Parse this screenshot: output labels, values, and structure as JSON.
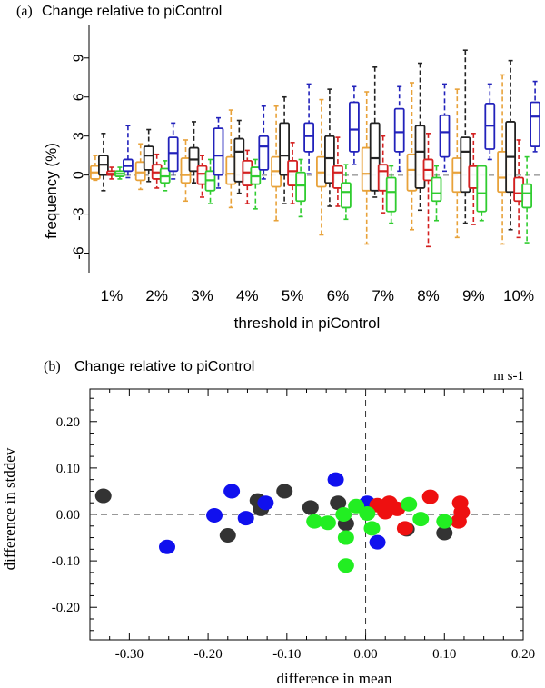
{
  "chart_data": [
    {
      "type": "box",
      "panel_label": "(a)",
      "title": "Change relative to piControl",
      "xlabel": "threshold in piControl",
      "ylabel": "frequency (%)",
      "ylim": [
        -7.5,
        11.5
      ],
      "yticks": [
        "-6",
        "-3",
        "0",
        "3",
        "6",
        "9"
      ],
      "ytick_values": [
        -6,
        -3,
        0,
        3,
        6,
        9
      ],
      "reference_line": 0,
      "categories": [
        "1%",
        "2%",
        "3%",
        "4%",
        "5%",
        "6%",
        "7%",
        "8%",
        "9%",
        "10%"
      ],
      "series_colors": [
        "#e8a23a",
        "#222222",
        "#d42020",
        "#30cc30",
        "#2222bb"
      ],
      "boxes": [
        [
          {
            "w_lo": -0.4,
            "q1": -0.3,
            "med": 0.2,
            "q3": 0.7,
            "w_hi": 1.5
          },
          {
            "w_lo": -1.2,
            "q1": 0.0,
            "med": 0.8,
            "q3": 1.5,
            "w_hi": 3.2
          },
          {
            "w_lo": -0.3,
            "q1": 0.0,
            "med": 0.1,
            "q3": 0.3,
            "w_hi": 0.6
          },
          {
            "w_lo": -0.3,
            "q1": -0.1,
            "med": 0.1,
            "q3": 0.3,
            "w_hi": 0.6
          },
          {
            "w_lo": -0.2,
            "q1": 0.3,
            "med": 0.7,
            "q3": 1.2,
            "w_hi": 3.8
          }
        ],
        [
          {
            "w_lo": -1.1,
            "q1": -0.4,
            "med": 0.2,
            "q3": 1.0,
            "w_hi": 2.4
          },
          {
            "w_lo": -0.5,
            "q1": 0.4,
            "med": 1.5,
            "q3": 2.2,
            "w_hi": 3.5
          },
          {
            "w_lo": -1.0,
            "q1": -0.3,
            "med": 0.2,
            "q3": 0.8,
            "w_hi": 1.6
          },
          {
            "w_lo": -1.2,
            "q1": -0.6,
            "med": -0.1,
            "q3": 0.5,
            "w_hi": 1.1
          },
          {
            "w_lo": -0.3,
            "q1": 0.3,
            "med": 1.7,
            "q3": 2.9,
            "w_hi": 4.0
          }
        ],
        [
          {
            "w_lo": -2.0,
            "q1": -0.6,
            "med": 0.0,
            "q3": 1.3,
            "w_hi": 2.7
          },
          {
            "w_lo": -0.6,
            "q1": 0.3,
            "med": 1.2,
            "q3": 2.1,
            "w_hi": 4.1
          },
          {
            "w_lo": -1.7,
            "q1": -0.7,
            "med": 0.1,
            "q3": 0.7,
            "w_hi": 1.5
          },
          {
            "w_lo": -2.2,
            "q1": -1.2,
            "med": -0.4,
            "q3": 0.3,
            "w_hi": 1.2
          },
          {
            "w_lo": -1.0,
            "q1": 0.0,
            "med": 1.5,
            "q3": 3.6,
            "w_hi": 4.4
          }
        ],
        [
          {
            "w_lo": -2.5,
            "q1": -0.7,
            "med": 0.1,
            "q3": 1.4,
            "w_hi": 5.0
          },
          {
            "w_lo": -1.4,
            "q1": -0.5,
            "med": 1.8,
            "q3": 2.8,
            "w_hi": 4.2
          },
          {
            "w_lo": -2.2,
            "q1": -0.8,
            "med": 0.2,
            "q3": 1.1,
            "w_hi": 1.9
          },
          {
            "w_lo": -2.6,
            "q1": -0.7,
            "med": -0.1,
            "q3": 0.6,
            "w_hi": 1.2
          },
          {
            "w_lo": -0.3,
            "q1": 0.4,
            "med": 2.2,
            "q3": 3.0,
            "w_hi": 5.3
          }
        ],
        [
          {
            "w_lo": -3.5,
            "q1": -0.9,
            "med": 0.3,
            "q3": 1.4,
            "w_hi": 5.3
          },
          {
            "w_lo": -2.2,
            "q1": 0.0,
            "med": 1.5,
            "q3": 4.0,
            "w_hi": 6.0
          },
          {
            "w_lo": -2.2,
            "q1": -0.8,
            "med": 0.3,
            "q3": 1.1,
            "w_hi": 2.5
          },
          {
            "w_lo": -3.2,
            "q1": -2.0,
            "med": -0.8,
            "q3": 0.2,
            "w_hi": 1.2
          },
          {
            "w_lo": 0.1,
            "q1": 1.8,
            "med": 3.0,
            "q3": 4.0,
            "w_hi": 7.0
          }
        ],
        [
          {
            "w_lo": -4.6,
            "q1": -0.9,
            "med": 0.2,
            "q3": 1.4,
            "w_hi": 5.8
          },
          {
            "w_lo": -2.4,
            "q1": -0.6,
            "med": 1.3,
            "q3": 3.0,
            "w_hi": 6.6
          },
          {
            "w_lo": -2.4,
            "q1": -1.0,
            "med": 0.2,
            "q3": 0.7,
            "w_hi": 2.9
          },
          {
            "w_lo": -3.4,
            "q1": -2.5,
            "med": -1.3,
            "q3": -0.6,
            "w_hi": 0.8
          },
          {
            "w_lo": 0.8,
            "q1": 1.8,
            "med": 3.5,
            "q3": 5.6,
            "w_hi": 6.8
          }
        ],
        [
          {
            "w_lo": -5.3,
            "q1": -1.2,
            "med": 0.1,
            "q3": 2.1,
            "w_hi": 6.4
          },
          {
            "w_lo": -1.7,
            "q1": -1.2,
            "med": 1.3,
            "q3": 4.0,
            "w_hi": 8.3
          },
          {
            "w_lo": -2.9,
            "q1": -1.2,
            "med": 0.3,
            "q3": 0.8,
            "w_hi": 3.0
          },
          {
            "w_lo": -3.7,
            "q1": -2.8,
            "med": -1.3,
            "q3": -0.2,
            "w_hi": 0.7
          },
          {
            "w_lo": 0.3,
            "q1": 1.8,
            "med": 3.3,
            "q3": 5.1,
            "w_hi": 6.8
          }
        ],
        [
          {
            "w_lo": -4.2,
            "q1": -1.2,
            "med": 0.4,
            "q3": 1.6,
            "w_hi": 7.1
          },
          {
            "w_lo": -2.7,
            "q1": -1.0,
            "med": 1.8,
            "q3": 3.8,
            "w_hi": 8.6
          },
          {
            "w_lo": -5.5,
            "q1": -0.4,
            "med": 0.4,
            "q3": 1.2,
            "w_hi": 3.2
          },
          {
            "w_lo": -3.5,
            "q1": -2.0,
            "med": -1.4,
            "q3": -0.2,
            "w_hi": 0.7
          },
          {
            "w_lo": 0.3,
            "q1": 1.4,
            "med": 3.3,
            "q3": 4.6,
            "w_hi": 7.0
          }
        ],
        [
          {
            "w_lo": -4.8,
            "q1": -1.3,
            "med": 0.2,
            "q3": 1.3,
            "w_hi": 6.6
          },
          {
            "w_lo": -3.7,
            "q1": -1.3,
            "med": 1.8,
            "q3": 2.9,
            "w_hi": 9.6
          },
          {
            "w_lo": -3.8,
            "q1": -1.0,
            "med": 0.7,
            "q3": 0.7,
            "w_hi": 3.2
          },
          {
            "w_lo": -3.5,
            "q1": -2.8,
            "med": -1.4,
            "q3": 0.7,
            "w_hi": 0.7
          },
          {
            "w_lo": 1.2,
            "q1": 2.0,
            "med": 3.8,
            "q3": 5.5,
            "w_hi": 7.0
          }
        ],
        [
          {
            "w_lo": -5.3,
            "q1": -1.3,
            "med": -0.2,
            "q3": 1.8,
            "w_hi": 7.7
          },
          {
            "w_lo": -4.2,
            "q1": -1.3,
            "med": 1.4,
            "q3": 4.1,
            "w_hi": 8.8
          },
          {
            "w_lo": -4.8,
            "q1": -2.0,
            "med": -1.4,
            "q3": -0.2,
            "w_hi": 2.7
          },
          {
            "w_lo": -5.2,
            "q1": -2.5,
            "med": -1.4,
            "q3": -0.7,
            "w_hi": 1.4
          },
          {
            "w_lo": 1.8,
            "q1": 2.2,
            "med": 4.5,
            "q3": 5.6,
            "w_hi": 7.2
          }
        ]
      ]
    },
    {
      "type": "scatter",
      "panel_label": "(b)",
      "title": "Change relative to piControl",
      "units": "m s-1",
      "xlabel": "difference in mean",
      "ylabel": "difference in stddev",
      "xlim": [
        -0.35,
        0.2
      ],
      "ylim": [
        -0.27,
        0.27
      ],
      "xticks": [
        "-0.30",
        "-0.20",
        "-0.10",
        "0.00",
        "0.10",
        "0.20"
      ],
      "xtick_values": [
        -0.3,
        -0.2,
        -0.1,
        0.0,
        0.1,
        0.2
      ],
      "yticks": [
        "-0.20",
        "-0.10",
        "0.00",
        "0.10",
        "0.20"
      ],
      "ytick_values": [
        -0.2,
        -0.1,
        0.0,
        0.1,
        0.2
      ],
      "series": [
        {
          "color": "#333333",
          "points": [
            [
              -0.333,
              0.04
            ],
            [
              -0.175,
              -0.045
            ],
            [
              -0.137,
              0.03
            ],
            [
              -0.133,
              0.012
            ],
            [
              -0.103,
              0.05
            ],
            [
              -0.07,
              0.015
            ],
            [
              -0.035,
              0.025
            ],
            [
              -0.025,
              -0.02
            ],
            [
              0.005,
              0.018
            ],
            [
              0.052,
              -0.032
            ],
            [
              0.1,
              -0.04
            ]
          ]
        },
        {
          "color": "#1010ee",
          "points": [
            [
              -0.252,
              -0.07
            ],
            [
              -0.192,
              -0.002
            ],
            [
              -0.17,
              0.05
            ],
            [
              -0.152,
              -0.008
            ],
            [
              -0.127,
              0.025
            ],
            [
              -0.038,
              0.075
            ],
            [
              0.002,
              0.025
            ],
            [
              0.015,
              -0.06
            ]
          ]
        },
        {
          "color": "#ee1010",
          "points": [
            [
              0.015,
              0.02
            ],
            [
              0.025,
              0.005
            ],
            [
              0.03,
              0.025
            ],
            [
              0.04,
              0.012
            ],
            [
              0.05,
              -0.03
            ],
            [
              0.082,
              0.038
            ],
            [
              0.12,
              0.025
            ],
            [
              0.122,
              0.005
            ],
            [
              0.118,
              -0.015
            ]
          ]
        },
        {
          "color": "#22ee22",
          "points": [
            [
              -0.065,
              -0.015
            ],
            [
              -0.048,
              -0.018
            ],
            [
              -0.028,
              0.0
            ],
            [
              -0.025,
              -0.05
            ],
            [
              -0.025,
              -0.11
            ],
            [
              -0.012,
              0.018
            ],
            [
              0.002,
              0.002
            ],
            [
              0.008,
              -0.03
            ],
            [
              0.055,
              0.022
            ],
            [
              0.07,
              -0.01
            ],
            [
              0.1,
              -0.015
            ]
          ]
        }
      ]
    }
  ]
}
